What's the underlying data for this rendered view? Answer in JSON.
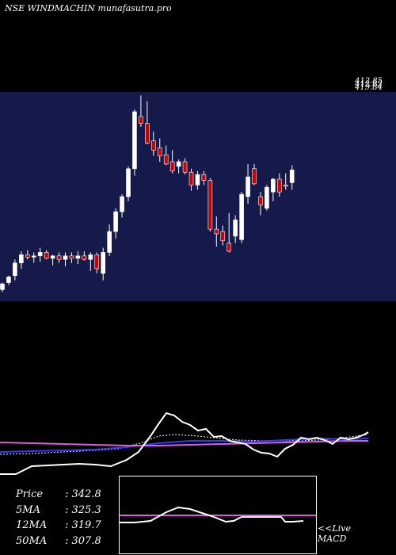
{
  "header": {
    "title": "NSE WINDMACHIN munafasutra.pro",
    "overlapping_labels": [
      "412.85",
      "412.82",
      "419.84"
    ]
  },
  "stats": [
    {
      "label": "Price",
      "value": ": 342.8"
    },
    {
      "label": "5MA",
      "value": ": 325.3"
    },
    {
      "label": "12MA",
      "value": ": 319.7"
    },
    {
      "label": "50MA",
      "value": ": 307.8"
    }
  ],
  "macd": {
    "label_line1": "<<Live",
    "label_line2": "MACD"
  },
  "colors": {
    "chart_bg": "#161a4a",
    "page_bg": "#000000",
    "up_candle": "#ffffff",
    "down_candle": "#cc0000",
    "ma_blue": "#3535ff",
    "ma_magenta": "#d760d7"
  },
  "chart_data": {
    "type": "candlestick",
    "price_range": [
      240,
      420
    ],
    "candles": [
      [
        250,
        256,
        248,
        255
      ],
      [
        256,
        262,
        254,
        261
      ],
      [
        262,
        276,
        258,
        273
      ],
      [
        273,
        283,
        268,
        280
      ],
      [
        280,
        284,
        276,
        278
      ],
      [
        278,
        282,
        273,
        279
      ],
      [
        279,
        286,
        274,
        282
      ],
      [
        282,
        284,
        276,
        277
      ],
      [
        277,
        280,
        271,
        279
      ],
      [
        279,
        282,
        273,
        276
      ],
      [
        276,
        282,
        270,
        279
      ],
      [
        279,
        282,
        273,
        277
      ],
      [
        277,
        283,
        272,
        279
      ],
      [
        279,
        283,
        275,
        276
      ],
      [
        276,
        282,
        266,
        280
      ],
      [
        280,
        282,
        264,
        268
      ],
      [
        264,
        286,
        258,
        282
      ],
      [
        282,
        306,
        279,
        300
      ],
      [
        300,
        320,
        294,
        317
      ],
      [
        317,
        332,
        312,
        330
      ],
      [
        330,
        356,
        326,
        354
      ],
      [
        354,
        405,
        348,
        403
      ],
      [
        399,
        417,
        390,
        393
      ],
      [
        393,
        412,
        375,
        376
      ],
      [
        378,
        386,
        365,
        370
      ],
      [
        372,
        380,
        360,
        365
      ],
      [
        366,
        374,
        357,
        358
      ],
      [
        360,
        370,
        350,
        352
      ],
      [
        356,
        362,
        350,
        360
      ],
      [
        360,
        363,
        349,
        351
      ],
      [
        351,
        354,
        335,
        340
      ],
      [
        340,
        352,
        336,
        349
      ],
      [
        349,
        352,
        340,
        344
      ],
      [
        344,
        346,
        300,
        302
      ],
      [
        302,
        313,
        287,
        298
      ],
      [
        300,
        305,
        288,
        292
      ],
      [
        290,
        316,
        282,
        283
      ],
      [
        296,
        314,
        290,
        310
      ],
      [
        293,
        334,
        290,
        332
      ],
      [
        330,
        358,
        324,
        347
      ],
      [
        354,
        358,
        340,
        341
      ],
      [
        330,
        334,
        314,
        323
      ],
      [
        320,
        340,
        318,
        338
      ],
      [
        334,
        346,
        326,
        345
      ],
      [
        345,
        350,
        330,
        334
      ],
      [
        340,
        350,
        336,
        339
      ],
      [
        342,
        357,
        336,
        353
      ]
    ]
  }
}
